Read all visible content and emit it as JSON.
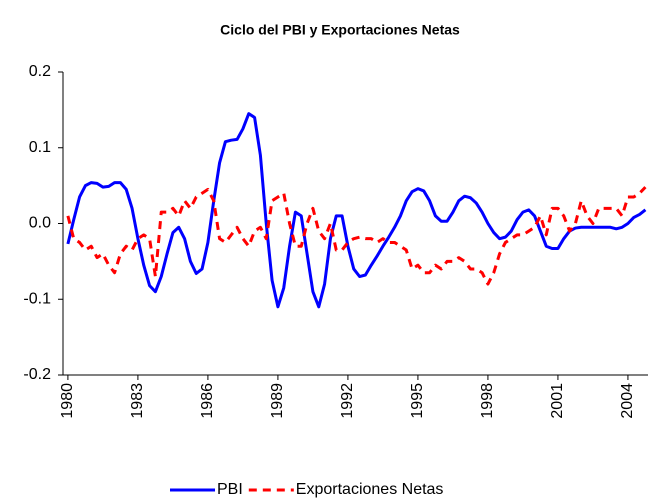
{
  "chart_data": {
    "type": "line",
    "title": "Ciclo del PBI y Exportaciones Netas",
    "x": [
      1980,
      1980.25,
      1980.5,
      1980.75,
      1981,
      1981.25,
      1981.5,
      1981.75,
      1982,
      1982.25,
      1982.5,
      1982.75,
      1983,
      1983.25,
      1983.5,
      1983.75,
      1984,
      1984.25,
      1984.5,
      1984.75,
      1985,
      1985.25,
      1985.5,
      1985.75,
      1986,
      1986.25,
      1986.5,
      1986.75,
      1987,
      1987.25,
      1987.5,
      1987.75,
      1988,
      1988.25,
      1988.5,
      1988.75,
      1989,
      1989.25,
      1989.5,
      1989.75,
      1990,
      1990.25,
      1990.5,
      1990.75,
      1991,
      1991.25,
      1991.5,
      1991.75,
      1992,
      1992.25,
      1992.5,
      1992.75,
      1993,
      1993.25,
      1993.5,
      1993.75,
      1994,
      1994.25,
      1994.5,
      1994.75,
      1995,
      1995.25,
      1995.5,
      1995.75,
      1996,
      1996.25,
      1996.5,
      1996.75,
      1997,
      1997.25,
      1997.5,
      1997.75,
      1998,
      1998.25,
      1998.5,
      1998.75,
      1999,
      1999.25,
      1999.5,
      1999.75,
      2000,
      2000.25,
      2000.5,
      2000.75,
      2001,
      2001.25,
      2001.5,
      2001.75,
      2002,
      2002.25,
      2002.5,
      2002.75,
      2003,
      2003.25,
      2003.5,
      2003.75,
      2004,
      2004.25,
      2004.5,
      2004.75
    ],
    "series": [
      {
        "name": "PBI",
        "color": "#0000ff",
        "dashed": false,
        "values": [
          -0.027,
          0.005,
          0.035,
          0.05,
          0.054,
          0.053,
          0.048,
          0.049,
          0.054,
          0.054,
          0.045,
          0.02,
          -0.02,
          -0.055,
          -0.082,
          -0.09,
          -0.07,
          -0.04,
          -0.012,
          -0.005,
          -0.02,
          -0.05,
          -0.066,
          -0.06,
          -0.025,
          0.03,
          0.08,
          0.108,
          0.11,
          0.111,
          0.125,
          0.145,
          0.14,
          0.09,
          0.0,
          -0.075,
          -0.11,
          -0.085,
          -0.03,
          0.015,
          0.01,
          -0.04,
          -0.09,
          -0.11,
          -0.08,
          -0.02,
          0.01,
          0.01,
          -0.03,
          -0.06,
          -0.07,
          -0.068,
          -0.055,
          -0.043,
          -0.03,
          -0.018,
          -0.005,
          0.01,
          0.03,
          0.042,
          0.046,
          0.043,
          0.03,
          0.01,
          0.003,
          0.003,
          0.015,
          0.03,
          0.036,
          0.034,
          0.027,
          0.015,
          0.0,
          -0.012,
          -0.02,
          -0.018,
          -0.01,
          0.005,
          0.015,
          0.018,
          0.01,
          -0.01,
          -0.03,
          -0.033,
          -0.033,
          -0.02,
          -0.01,
          -0.006,
          -0.005,
          -0.005,
          -0.005,
          -0.005,
          -0.005,
          -0.005,
          -0.007,
          -0.005,
          0.0,
          0.008,
          0.012,
          0.018
        ]
      },
      {
        "name": "Exportaciones Netas",
        "color": "#ff0000",
        "dashed": true,
        "values": [
          0.01,
          -0.02,
          -0.025,
          -0.035,
          -0.03,
          -0.045,
          -0.04,
          -0.055,
          -0.065,
          -0.04,
          -0.03,
          -0.035,
          -0.02,
          -0.015,
          -0.02,
          -0.07,
          0.015,
          0.015,
          0.02,
          0.01,
          0.03,
          0.02,
          0.035,
          0.04,
          0.045,
          0.03,
          -0.02,
          -0.025,
          -0.015,
          -0.005,
          -0.02,
          -0.03,
          -0.01,
          -0.005,
          -0.02,
          0.03,
          0.035,
          0.04,
          0.0,
          -0.03,
          -0.03,
          0.0,
          0.02,
          -0.01,
          -0.02,
          0.0,
          -0.035,
          -0.035,
          -0.025,
          -0.02,
          -0.018,
          -0.02,
          -0.02,
          -0.025,
          -0.02,
          -0.025,
          -0.025,
          -0.03,
          -0.035,
          -0.06,
          -0.055,
          -0.065,
          -0.065,
          -0.055,
          -0.06,
          -0.05,
          -0.05,
          -0.045,
          -0.05,
          -0.06,
          -0.06,
          -0.065,
          -0.08,
          -0.065,
          -0.04,
          -0.025,
          -0.02,
          -0.015,
          -0.015,
          -0.01,
          -0.005,
          0.01,
          -0.015,
          0.02,
          0.02,
          0.01,
          -0.01,
          0.0,
          0.03,
          0.01,
          0.0,
          0.02,
          0.02,
          0.02,
          0.02,
          0.01,
          0.035,
          0.035,
          0.04,
          0.048
        ]
      }
    ],
    "xlim": [
      1979.79,
      2004.86
    ],
    "xticks": [
      1980,
      1983,
      1986,
      1989,
      1992,
      1995,
      1998,
      2001,
      2004
    ],
    "ylim": [
      -0.2,
      0.2
    ],
    "yticks": [
      0.2,
      0.1,
      {
        "value": 0,
        "label": "0.0"
      },
      -0.1,
      -0.2
    ],
    "grid": false,
    "legend": "bottom"
  }
}
